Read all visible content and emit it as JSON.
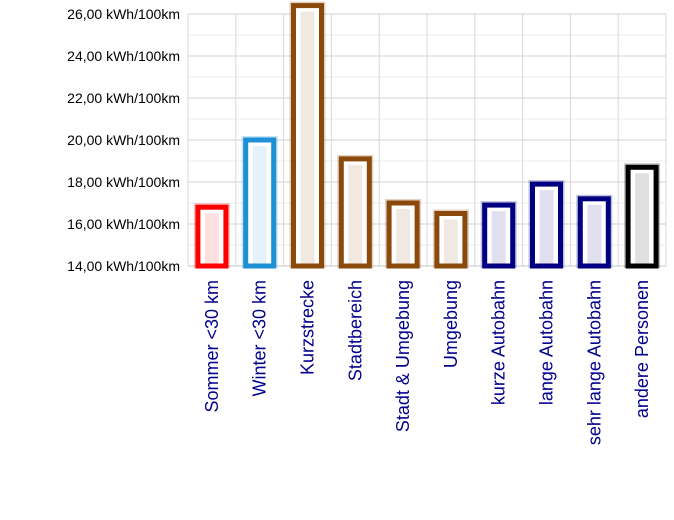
{
  "chart_data": {
    "type": "bar",
    "categories": [
      "Sommer <30 km",
      "Winter <30 km",
      "Kurzstrecke",
      "Stadtbereich",
      "Stadt & Umgebung",
      "Umgebung",
      "kurze Autobahn",
      "lange Autobahn",
      "sehr lange Autobahn",
      "andere Personen"
    ],
    "values": [
      16.8,
      20.0,
      26.4,
      19.1,
      17.0,
      16.5,
      16.9,
      17.9,
      17.2,
      18.7
    ],
    "colors": [
      "#ff0000",
      "#1e90d6",
      "#8b4a0c",
      "#8b4a0c",
      "#8b4a0c",
      "#8b4a0c",
      "#000080",
      "#000080",
      "#000080",
      "#000000"
    ],
    "label_color": "#00008b",
    "ylim": [
      14,
      26
    ],
    "yticks": [
      14,
      16,
      18,
      20,
      22,
      24,
      26
    ],
    "ytick_labels": [
      "14,00 kWh/100km",
      "16,00 kWh/100km",
      "18,00 kWh/100km",
      "20,00 kWh/100km",
      "22,00 kWh/100km",
      "24,00 kWh/100km",
      "26,00 kWh/100km"
    ],
    "grid": true,
    "title": "",
    "xlabel": "",
    "ylabel": ""
  }
}
